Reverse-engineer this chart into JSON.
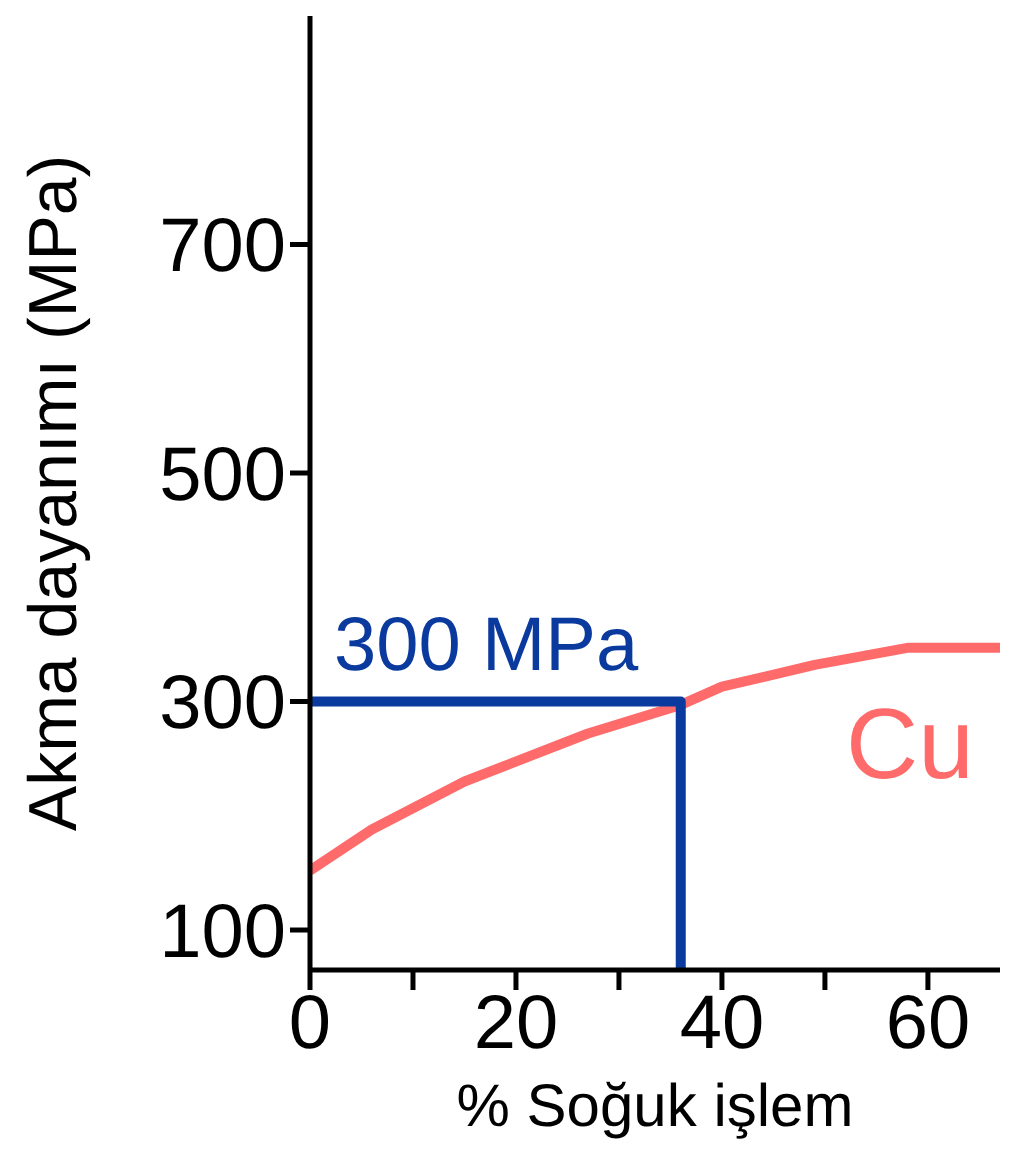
{
  "chart_data": {
    "type": "line",
    "xlabel": "% Soğuk işlem",
    "ylabel": "Akma dayanımı (MPa)",
    "xlim": [
      0,
      67
    ],
    "xticks": [
      0,
      {
        "value": 10,
        "label": null
      },
      20,
      {
        "value": 30,
        "label": null
      },
      40,
      {
        "value": 50,
        "label": null
      },
      60
    ],
    "ylim": [
      65,
      900
    ],
    "yticks": [
      100,
      300,
      500,
      700
    ],
    "marker": "none",
    "line_style": "solid",
    "series": [
      {
        "name": "Cu",
        "color": "#ff6b6b",
        "x": [
          0,
          6,
          15,
          27,
          36,
          40,
          49,
          58,
          67
        ],
        "values": [
          152,
          188,
          230,
          272,
          297,
          313,
          332,
          347,
          347
        ]
      },
      {
        "color": "#0a3a9e",
        "x": [
          0,
          36,
          36
        ],
        "values": [
          300,
          300,
          65
        ]
      }
    ],
    "annotations": [
      {
        "text": "300 MPa",
        "x": 0,
        "y": 300
      }
    ]
  }
}
